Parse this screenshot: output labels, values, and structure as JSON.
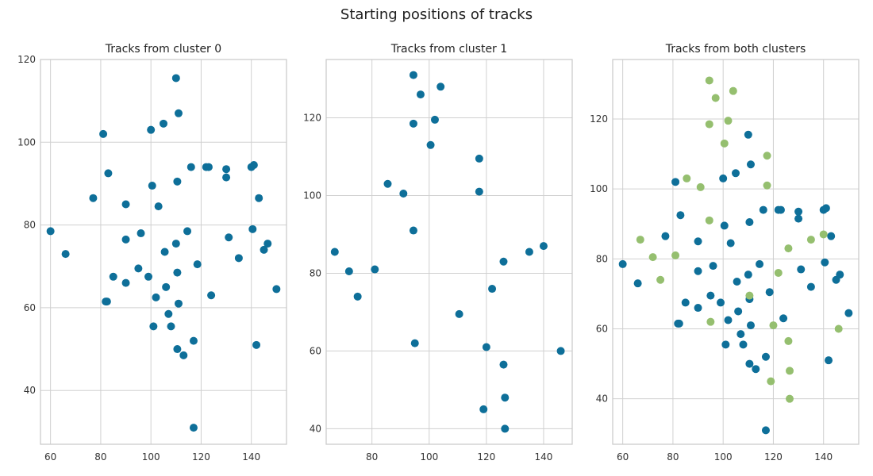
{
  "figure_title": "Starting positions of tracks",
  "colors": {
    "cluster0": "#0e6f99",
    "cluster1": "#95bf6f",
    "grid": "#d0d0d0",
    "frame": "#c8c8c8"
  },
  "chart_data": [
    {
      "type": "scatter",
      "title": "Tracks from cluster 0",
      "xlim": [
        56,
        154
      ],
      "ylim": [
        27,
        120
      ],
      "xticks": [
        60,
        80,
        100,
        120,
        140
      ],
      "yticks": [
        40,
        60,
        80,
        100,
        120
      ],
      "grid": true,
      "series": [
        {
          "color_key": "cluster0",
          "points": [
            [
              60,
              78.5
            ],
            [
              66,
              73
            ],
            [
              77,
              86.5
            ],
            [
              81,
              102
            ],
            [
              83,
              92.5
            ],
            [
              82,
              61.5
            ],
            [
              82.5,
              61.5
            ],
            [
              85,
              67.5
            ],
            [
              90,
              85
            ],
            [
              90,
              76.5
            ],
            [
              90,
              66
            ],
            [
              95,
              69.5
            ],
            [
              96,
              78
            ],
            [
              99,
              67.5
            ],
            [
              100,
              103
            ],
            [
              100.5,
              89.5
            ],
            [
              101,
              55.5
            ],
            [
              102,
              62.5
            ],
            [
              103,
              84.5
            ],
            [
              105,
              104.5
            ],
            [
              105.5,
              73.5
            ],
            [
              106,
              65
            ],
            [
              107,
              58.5
            ],
            [
              108,
              55.5
            ],
            [
              110,
              75.5
            ],
            [
              110,
              115.5
            ],
            [
              110.5,
              90.5
            ],
            [
              110.5,
              68.5
            ],
            [
              110.5,
              50
            ],
            [
              111,
              107
            ],
            [
              111,
              61
            ],
            [
              113,
              48.5
            ],
            [
              114.5,
              78.5
            ],
            [
              116,
              94
            ],
            [
              117,
              52
            ],
            [
              118.5,
              70.5
            ],
            [
              117,
              31
            ],
            [
              122,
              94
            ],
            [
              123,
              94
            ],
            [
              124,
              63
            ],
            [
              130,
              93.5
            ],
            [
              130,
              91.5
            ],
            [
              131,
              77
            ],
            [
              135,
              72
            ],
            [
              140,
              94
            ],
            [
              141,
              94.5
            ],
            [
              140.5,
              79
            ],
            [
              142,
              51
            ],
            [
              143,
              86.5
            ],
            [
              145,
              74
            ],
            [
              146.5,
              75.5
            ],
            [
              150,
              64.5
            ]
          ]
        }
      ]
    },
    {
      "type": "scatter",
      "title": "Tracks from cluster 1",
      "xlim": [
        64,
        150
      ],
      "ylim": [
        36,
        135
      ],
      "xticks": [
        80,
        100,
        120,
        140
      ],
      "yticks": [
        40,
        60,
        80,
        100,
        120
      ],
      "grid": true,
      "series": [
        {
          "color_key": "cluster0",
          "points": [
            [
              67,
              85.5
            ],
            [
              72,
              80.5
            ],
            [
              75,
              74
            ],
            [
              81,
              81
            ],
            [
              85.5,
              103
            ],
            [
              91,
              100.5
            ],
            [
              94.5,
              131
            ],
            [
              94.5,
              118.5
            ],
            [
              94.5,
              91
            ],
            [
              95,
              62
            ],
            [
              97,
              126
            ],
            [
              100.5,
              113
            ],
            [
              102,
              119.5
            ],
            [
              104,
              128
            ],
            [
              110.5,
              69.5
            ],
            [
              117.5,
              109.5
            ],
            [
              117.5,
              101
            ],
            [
              120,
              61
            ],
            [
              119,
              45
            ],
            [
              122,
              76
            ],
            [
              126,
              83
            ],
            [
              126,
              56.5
            ],
            [
              126.5,
              48
            ],
            [
              126.5,
              40
            ],
            [
              135,
              85.5
            ],
            [
              140,
              87
            ],
            [
              146,
              60
            ]
          ]
        }
      ]
    },
    {
      "type": "scatter",
      "title": "Tracks from both clusters",
      "xlim": [
        56,
        154
      ],
      "ylim": [
        27,
        137
      ],
      "xticks": [
        60,
        80,
        100,
        120,
        140
      ],
      "yticks": [
        40,
        60,
        80,
        100,
        120
      ],
      "grid": true,
      "series": [
        {
          "color_key": "cluster0",
          "points": [
            [
              60,
              78.5
            ],
            [
              66,
              73
            ],
            [
              77,
              86.5
            ],
            [
              81,
              102
            ],
            [
              83,
              92.5
            ],
            [
              82,
              61.5
            ],
            [
              82.5,
              61.5
            ],
            [
              85,
              67.5
            ],
            [
              90,
              85
            ],
            [
              90,
              76.5
            ],
            [
              90,
              66
            ],
            [
              95,
              69.5
            ],
            [
              96,
              78
            ],
            [
              99,
              67.5
            ],
            [
              100,
              103
            ],
            [
              100.5,
              89.5
            ],
            [
              101,
              55.5
            ],
            [
              102,
              62.5
            ],
            [
              103,
              84.5
            ],
            [
              105,
              104.5
            ],
            [
              105.5,
              73.5
            ],
            [
              106,
              65
            ],
            [
              107,
              58.5
            ],
            [
              108,
              55.5
            ],
            [
              110,
              75.5
            ],
            [
              110,
              115.5
            ],
            [
              110.5,
              90.5
            ],
            [
              110.5,
              68.5
            ],
            [
              110.5,
              50
            ],
            [
              111,
              107
            ],
            [
              111,
              61
            ],
            [
              113,
              48.5
            ],
            [
              114.5,
              78.5
            ],
            [
              116,
              94
            ],
            [
              117,
              52
            ],
            [
              118.5,
              70.5
            ],
            [
              117,
              31
            ],
            [
              122,
              94
            ],
            [
              123,
              94
            ],
            [
              124,
              63
            ],
            [
              130,
              93.5
            ],
            [
              130,
              91.5
            ],
            [
              131,
              77
            ],
            [
              135,
              72
            ],
            [
              140,
              94
            ],
            [
              141,
              94.5
            ],
            [
              140.5,
              79
            ],
            [
              142,
              51
            ],
            [
              143,
              86.5
            ],
            [
              145,
              74
            ],
            [
              146.5,
              75.5
            ],
            [
              150,
              64.5
            ]
          ]
        },
        {
          "color_key": "cluster1",
          "points": [
            [
              67,
              85.5
            ],
            [
              72,
              80.5
            ],
            [
              75,
              74
            ],
            [
              81,
              81
            ],
            [
              85.5,
              103
            ],
            [
              91,
              100.5
            ],
            [
              94.5,
              131
            ],
            [
              94.5,
              118.5
            ],
            [
              94.5,
              91
            ],
            [
              95,
              62
            ],
            [
              97,
              126
            ],
            [
              100.5,
              113
            ],
            [
              102,
              119.5
            ],
            [
              104,
              128
            ],
            [
              110.5,
              69.5
            ],
            [
              117.5,
              109.5
            ],
            [
              117.5,
              101
            ],
            [
              120,
              61
            ],
            [
              119,
              45
            ],
            [
              122,
              76
            ],
            [
              126,
              83
            ],
            [
              126,
              56.5
            ],
            [
              126.5,
              48
            ],
            [
              126.5,
              40
            ],
            [
              135,
              85.5
            ],
            [
              140,
              87
            ],
            [
              146,
              60
            ]
          ]
        }
      ]
    }
  ]
}
